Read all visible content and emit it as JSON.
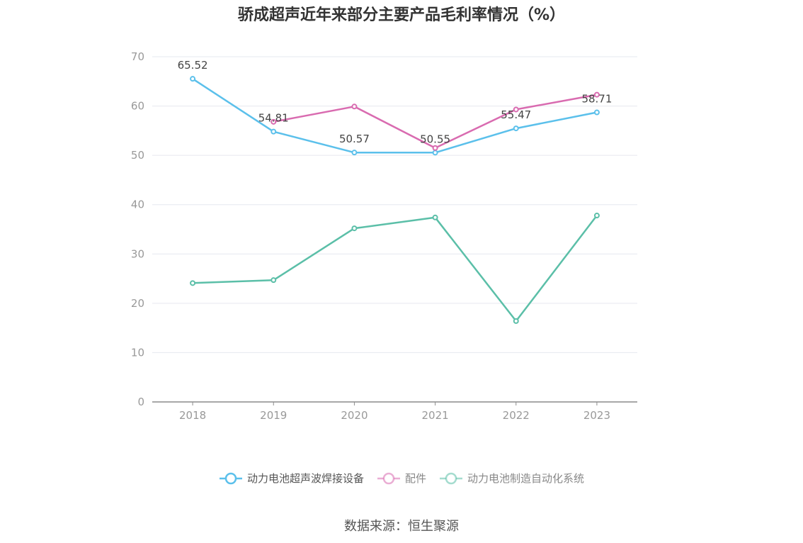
{
  "chart_data": {
    "type": "line",
    "title": "骄成超声近年来部分主要产品毛利率情况（%）",
    "categories": [
      "2018",
      "2019",
      "2020",
      "2021",
      "2022",
      "2023"
    ],
    "ylim": [
      0,
      70
    ],
    "yticks": [
      0,
      10,
      20,
      30,
      40,
      50,
      60,
      70
    ],
    "grid": true,
    "legend_position": "bottom",
    "series": [
      {
        "name": "动力电池超声波焊接设备",
        "color": "#5bc0eb",
        "values": [
          65.52,
          54.81,
          50.57,
          50.55,
          55.47,
          58.71
        ],
        "show_labels": true
      },
      {
        "name": "配件",
        "color": "#d96bb0",
        "values": [
          null,
          56.8,
          59.9,
          51.5,
          59.3,
          62.3
        ],
        "show_labels": false
      },
      {
        "name": "动力电池制造自动化系统",
        "color": "#5bbfa8",
        "values": [
          24.1,
          24.7,
          35.2,
          37.4,
          16.4,
          37.8
        ],
        "show_labels": false
      }
    ]
  },
  "source": "数据来源：恒生聚源"
}
